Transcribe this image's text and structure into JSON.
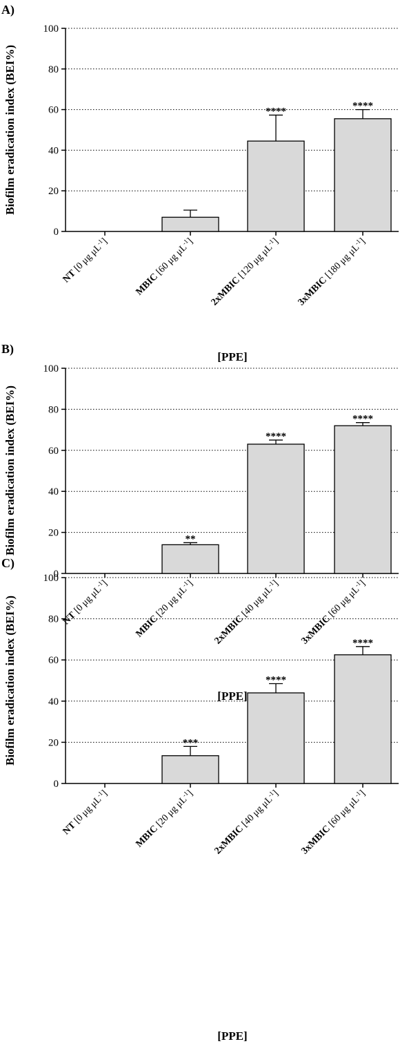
{
  "chart_data": [
    {
      "type": "bar",
      "panel_label": "A)",
      "xlabel": "[PPE]",
      "ylabel": "Biofilm eradication index (BEI%)",
      "ylim": [
        0,
        100
      ],
      "yticks": [
        0,
        20,
        40,
        60,
        80,
        100
      ],
      "grid": "horizontal dotted",
      "categories": [
        {
          "bold": "NT",
          "rest": " [0 μg μL",
          "sup": "-1",
          "close": "]"
        },
        {
          "bold": "MBIC",
          "rest": " [60 μg μL",
          "sup": "-1",
          "close": "]"
        },
        {
          "bold": "2xMBIC",
          "rest": " [120 μg μL",
          "sup": "-1",
          "close": "]"
        },
        {
          "bold": "3xMBIC",
          "rest": " [180 μg μL",
          "sup": "-1",
          "close": "]"
        }
      ],
      "values": [
        0,
        7,
        44.5,
        55.5
      ],
      "errors": [
        0,
        3.5,
        12.8,
        4.5
      ],
      "significance": [
        "",
        "",
        "****",
        "****"
      ],
      "bar_color": "#d9d9d9"
    },
    {
      "type": "bar",
      "panel_label": "B)",
      "xlabel": "[PPE]",
      "ylabel": "Biofilm eradication index (BEI%)",
      "ylim": [
        0,
        100
      ],
      "yticks": [
        0,
        20,
        40,
        60,
        80,
        100
      ],
      "grid": "horizontal dotted",
      "categories": [
        {
          "bold": "NT",
          "rest": " [0 μg μL",
          "sup": "-1",
          "close": "]"
        },
        {
          "bold": "MBIC",
          "rest": " [20 μg μL",
          "sup": "-1",
          "close": "]"
        },
        {
          "bold": "2xMBIC",
          "rest": " [40 μg μL",
          "sup": "-1",
          "close": "]"
        },
        {
          "bold": "3xMBIC",
          "rest": " [60 μg μL",
          "sup": "-1",
          "close": "]"
        }
      ],
      "values": [
        0,
        14,
        63,
        72
      ],
      "errors": [
        0,
        1,
        2,
        1.5
      ],
      "significance": [
        "",
        "**",
        "****",
        "****"
      ],
      "bar_color": "#d9d9d9"
    },
    {
      "type": "bar",
      "panel_label": "C)",
      "xlabel": "[PPE]",
      "ylabel": "Biofilm eradication index (BEI%)",
      "ylim": [
        0,
        100
      ],
      "yticks": [
        0,
        20,
        40,
        60,
        80,
        100
      ],
      "grid": "horizontal dotted",
      "categories": [
        {
          "bold": "NT",
          "rest": " [0 μg μL",
          "sup": "-1",
          "close": "]"
        },
        {
          "bold": "MBIC",
          "rest": " [20 μg μL",
          "sup": "-1",
          "close": "]"
        },
        {
          "bold": "2xMBIC",
          "rest": " [40 μg μL",
          "sup": "-1",
          "close": "]"
        },
        {
          "bold": "3xMBIC",
          "rest": " [60 μg μL",
          "sup": "-1",
          "close": "]"
        }
      ],
      "values": [
        0,
        13.5,
        44,
        62.5
      ],
      "errors": [
        0,
        4.5,
        4.5,
        4
      ],
      "significance": [
        "",
        "***",
        "****",
        "****"
      ],
      "bar_color": "#d9d9d9"
    }
  ]
}
